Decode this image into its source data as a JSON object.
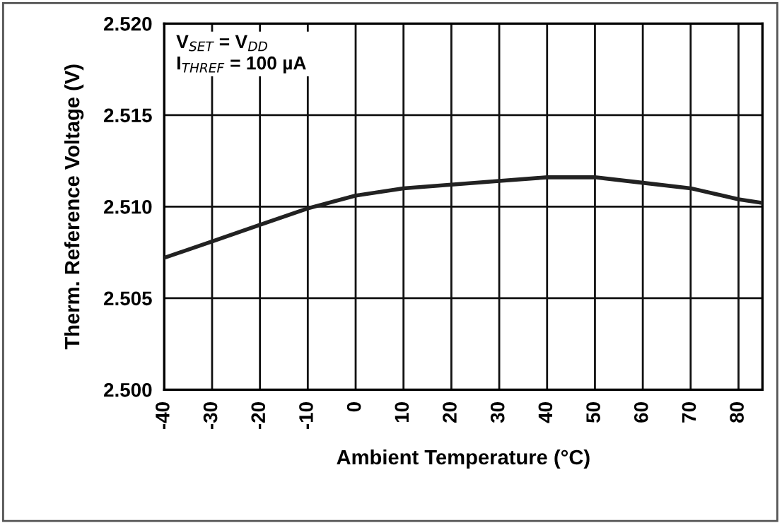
{
  "chart_data": {
    "type": "line",
    "xlabel": "Ambient Temperature (°C)",
    "ylabel": "Therm. Reference Voltage (V)",
    "annotations": [
      "V$_{SET}$ = V$_{DD}$",
      "I$_{THREF}$ = 100 µA"
    ],
    "x": [
      -40,
      -30,
      -20,
      -10,
      0,
      10,
      20,
      30,
      40,
      50,
      60,
      70,
      80,
      85
    ],
    "series": [
      {
        "color": "#222222",
        "values": [
          2.5072,
          2.5081,
          2.509,
          2.5099,
          2.5106,
          2.511,
          2.5112,
          2.5114,
          2.5116,
          2.5116,
          2.5113,
          2.511,
          2.5104,
          2.5102
        ]
      }
    ],
    "xlim": [
      -40,
      85
    ],
    "xticks": [
      -40,
      -30,
      -20,
      -10,
      0,
      10,
      20,
      30,
      40,
      50,
      60,
      70,
      80
    ],
    "ylim": [
      2.5,
      2.52
    ],
    "yticks": [
      {
        "value": 2.5,
        "label": "2.500"
      },
      {
        "value": 2.505,
        "label": "2.505"
      },
      {
        "value": 2.51,
        "label": "2.510"
      },
      {
        "value": 2.515,
        "label": "2.515"
      },
      {
        "value": 2.52,
        "label": "2.520"
      }
    ],
    "grid": true,
    "marker": "none",
    "line_style": "solid"
  }
}
